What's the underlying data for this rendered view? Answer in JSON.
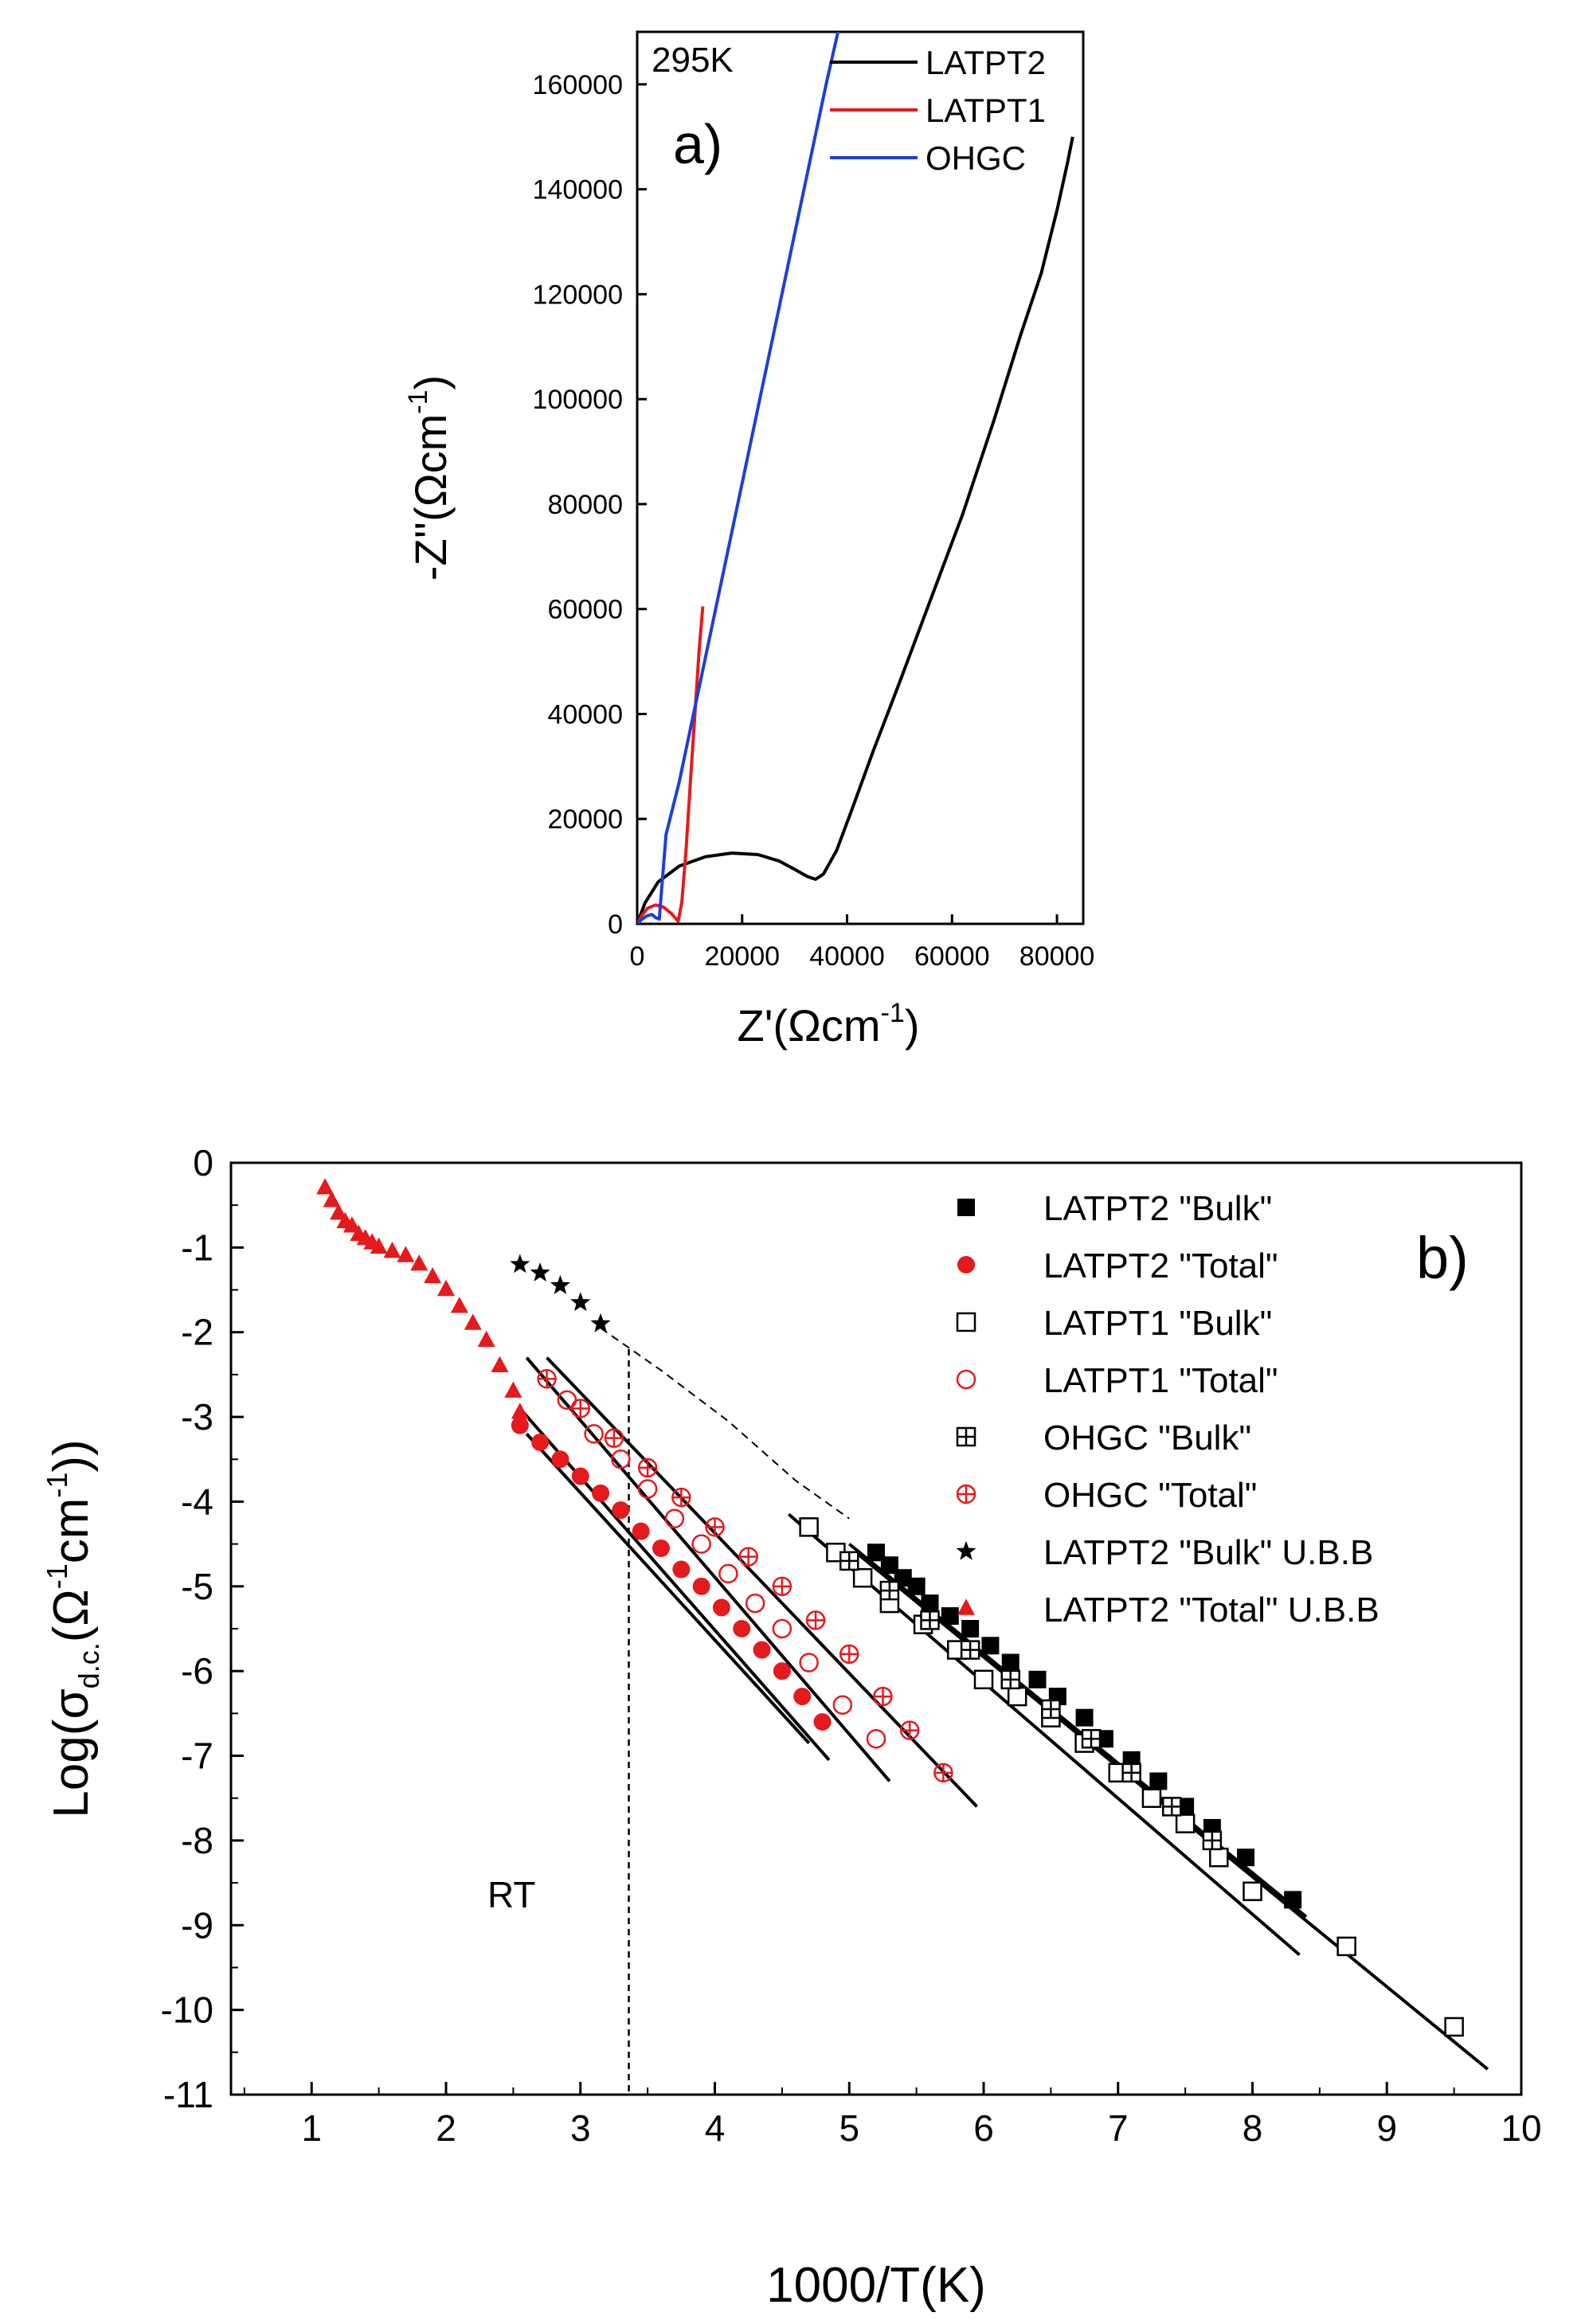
{
  "chart_data": [
    {
      "panel_label": "a)",
      "type": "line",
      "annotation": "295K",
      "xlabel": "Z'(Ωcm",
      "ylabel": "-Z''(Ωcm",
      "unit_exponent": "-1",
      "unit_close": ")",
      "xlim": [
        0,
        85000
      ],
      "ylim": [
        0,
        170000
      ],
      "xticks": [
        0,
        20000,
        40000,
        60000,
        80000
      ],
      "yticks": [
        0,
        20000,
        40000,
        60000,
        80000,
        100000,
        120000,
        140000,
        160000
      ],
      "series": [
        {
          "name": "LATPT2",
          "color": "#000000",
          "x": [
            0,
            1500,
            4000,
            8000,
            13000,
            18000,
            23000,
            27000,
            30000,
            32500,
            34000,
            35500,
            38000,
            41000,
            45000,
            50000,
            56000,
            62000,
            68000,
            73000,
            77000,
            80000,
            82000,
            83000
          ],
          "y": [
            0,
            4000,
            8000,
            11000,
            12800,
            13500,
            13200,
            12000,
            10400,
            9000,
            8500,
            9500,
            14000,
            22000,
            33000,
            46000,
            62000,
            78000,
            96000,
            112000,
            124000,
            136000,
            145000,
            150000
          ]
        },
        {
          "name": "LATPT1",
          "color": "#e41a1c",
          "x": [
            0,
            800,
            2000,
            3500,
            5000,
            6500,
            7800,
            8500,
            9300,
            10200,
            11000,
            11800,
            12500
          ],
          "y": [
            0,
            1500,
            3000,
            3600,
            3200,
            2000,
            500,
            4000,
            14000,
            28000,
            40000,
            52000,
            60500
          ]
        },
        {
          "name": "OHGC",
          "color": "#1f3fd6",
          "x": [
            0,
            800,
            1800,
            2800,
            3500,
            4200,
            5500,
            8000,
            12000,
            16000,
            20000,
            24000,
            28000,
            32000,
            36000,
            38500
          ],
          "y": [
            0,
            800,
            1500,
            1800,
            1200,
            900,
            17000,
            27000,
            46000,
            65000,
            84000,
            103000,
            122000,
            141000,
            160000,
            171000
          ]
        }
      ]
    },
    {
      "panel_label": "b)",
      "type": "scatter",
      "xlabel": "1000/T(K)",
      "ylabel_prefix": "Log(σ",
      "ylabel_sub": "d.c.",
      "ylabel_mid": "(Ω",
      "ylabel_exp": "-1",
      "ylabel_cm": "cm",
      "ylabel_suffix": "))",
      "annotation": "RT",
      "rt_x": 3.36,
      "xlim": [
        0.4,
        10
      ],
      "ylim": [
        -11,
        0
      ],
      "xticks": [
        1,
        2,
        3,
        4,
        5,
        6,
        7,
        8,
        9,
        10
      ],
      "yticks": [
        0,
        -1,
        -2,
        -3,
        -4,
        -5,
        -6,
        -7,
        -8,
        -9,
        -10,
        -11
      ],
      "series": [
        {
          "name": "LATPT2 \"Bulk\"",
          "marker": "filled-square",
          "color": "#000000",
          "x": [
            5.2,
            5.3,
            5.4,
            5.5,
            5.6,
            5.75,
            5.9,
            6.05,
            6.2,
            6.4,
            6.55,
            6.75,
            6.9,
            7.1,
            7.3,
            7.5,
            7.7,
            7.95,
            8.3
          ],
          "y": [
            -4.6,
            -4.75,
            -4.9,
            -5.0,
            -5.2,
            -5.35,
            -5.5,
            -5.7,
            -5.9,
            -6.1,
            -6.3,
            -6.55,
            -6.8,
            -7.05,
            -7.3,
            -7.6,
            -7.85,
            -8.2,
            -8.7
          ]
        },
        {
          "name": "LATPT2 \"Total\"",
          "marker": "filled-circle",
          "color": "#e41a1c",
          "x": [
            2.55,
            2.7,
            2.85,
            3.0,
            3.15,
            3.3,
            3.45,
            3.6,
            3.75,
            3.9,
            4.05,
            4.2,
            4.35,
            4.5,
            4.65,
            4.8
          ],
          "y": [
            -3.1,
            -3.3,
            -3.5,
            -3.7,
            -3.9,
            -4.1,
            -4.35,
            -4.55,
            -4.8,
            -5.0,
            -5.25,
            -5.5,
            -5.75,
            -6.0,
            -6.3,
            -6.6
          ]
        },
        {
          "name": "LATPT1 \"Bulk\"",
          "marker": "open-square",
          "color": "#000000",
          "x": [
            4.7,
            4.9,
            5.1,
            5.3,
            5.55,
            5.8,
            6.0,
            6.25,
            6.5,
            6.75,
            7.0,
            7.25,
            7.5,
            7.75,
            8.0,
            8.7,
            9.5
          ],
          "y": [
            -4.3,
            -4.6,
            -4.9,
            -5.2,
            -5.45,
            -5.75,
            -6.1,
            -6.3,
            -6.55,
            -6.85,
            -7.2,
            -7.5,
            -7.8,
            -8.2,
            -8.6,
            -9.25,
            -10.2
          ]
        },
        {
          "name": "LATPT1 \"Total\"",
          "marker": "open-circle",
          "color": "#e41a1c",
          "x": [
            2.9,
            3.1,
            3.3,
            3.5,
            3.7,
            3.9,
            4.1,
            4.3,
            4.5,
            4.7,
            4.95,
            5.2
          ],
          "y": [
            -2.8,
            -3.2,
            -3.5,
            -3.85,
            -4.2,
            -4.5,
            -4.85,
            -5.2,
            -5.5,
            -5.9,
            -6.4,
            -6.8
          ]
        },
        {
          "name": "OHGC \"Bulk\"",
          "marker": "crossed-square",
          "color": "#000000",
          "x": [
            5.0,
            5.3,
            5.6,
            5.9,
            6.2,
            6.5,
            6.8,
            7.1,
            7.4,
            7.7
          ],
          "y": [
            -4.7,
            -5.05,
            -5.4,
            -5.75,
            -6.1,
            -6.45,
            -6.8,
            -7.2,
            -7.6,
            -8.0
          ]
        },
        {
          "name": "OHGC \"Total\"",
          "marker": "crossed-circle",
          "color": "#e41a1c",
          "x": [
            2.75,
            3.0,
            3.25,
            3.5,
            3.75,
            4.0,
            4.25,
            4.5,
            4.75,
            5.0,
            5.25,
            5.45,
            5.7
          ],
          "y": [
            -2.55,
            -2.9,
            -3.25,
            -3.6,
            -3.95,
            -4.3,
            -4.65,
            -5.0,
            -5.4,
            -5.8,
            -6.3,
            -6.7,
            -7.2
          ]
        },
        {
          "name": "LATPT2 \"Bulk\" U.B.B",
          "marker": "star",
          "color": "#000000",
          "x": [
            2.55,
            2.7,
            2.85,
            3.0,
            3.15
          ],
          "y": [
            -1.2,
            -1.3,
            -1.45,
            -1.65,
            -1.9
          ]
        },
        {
          "name": "LATPT2 \"Total\" U.B.B",
          "marker": "filled-triangle",
          "color": "#e41a1c",
          "x": [
            1.1,
            1.15,
            1.2,
            1.25,
            1.3,
            1.35,
            1.4,
            1.45,
            1.5,
            1.6,
            1.7,
            1.8,
            1.9,
            2.0,
            2.1,
            2.2,
            2.3,
            2.4,
            2.5,
            2.55
          ],
          "y": [
            -0.3,
            -0.45,
            -0.6,
            -0.7,
            -0.75,
            -0.85,
            -0.9,
            -0.95,
            -1.0,
            -1.05,
            -1.1,
            -1.2,
            -1.35,
            -1.5,
            -1.7,
            -1.9,
            -2.1,
            -2.4,
            -2.7,
            -2.95
          ]
        }
      ],
      "fit_lines": [
        {
          "x": [
            2.55,
            4.85
          ],
          "y": [
            -2.9,
            -7.05
          ]
        },
        {
          "x": [
            2.6,
            4.7
          ],
          "y": [
            -3.2,
            -6.85
          ]
        },
        {
          "x": [
            2.6,
            5.3
          ],
          "y": [
            -2.3,
            -7.3
          ]
        },
        {
          "x": [
            2.75,
            5.95
          ],
          "y": [
            -2.3,
            -7.6
          ]
        },
        {
          "x": [
            4.55,
            8.35
          ],
          "y": [
            -4.15,
            -9.35
          ]
        },
        {
          "x": [
            5.05,
            9.75
          ],
          "y": [
            -4.6,
            -10.7
          ]
        },
        {
          "x": [
            5.0,
            8.4
          ],
          "y": [
            -4.5,
            -8.9
          ]
        }
      ],
      "extrapolation": {
        "x": [
          3.15,
          3.6,
          4.1,
          4.6,
          5.0
        ],
        "y": [
          -1.95,
          -2.45,
          -3.05,
          -3.75,
          -4.2
        ]
      }
    }
  ]
}
